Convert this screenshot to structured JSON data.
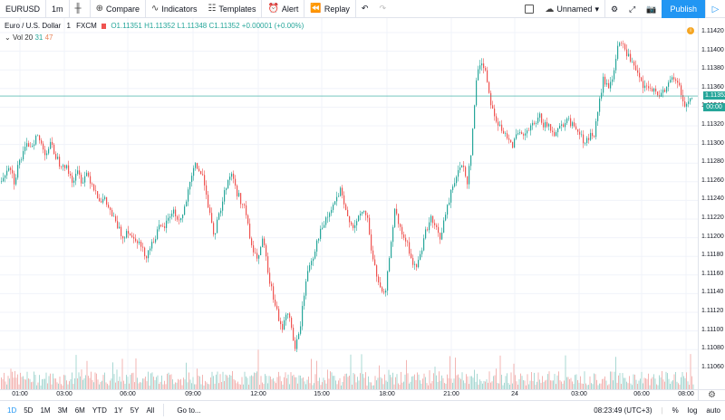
{
  "toolbar": {
    "symbol": "EURUSD",
    "interval": "1m",
    "compare": "Compare",
    "indicators": "Indicators",
    "templates": "Templates",
    "alert": "Alert",
    "replay": "Replay",
    "layout_name": "Unnamed",
    "publish": "Publish"
  },
  "legend": {
    "name": "Euro / U.S. Dollar",
    "interval": "1",
    "exchange": "FXCM",
    "open": "O1.11351",
    "high": "H1.11352",
    "low": "L1.11348",
    "close": "C1.11352",
    "change": "+0.00001 (+0.00%)",
    "vol_label": "Vol",
    "vol_period": "20",
    "vol_value": "31",
    "vol_ma": "47"
  },
  "price_axis": {
    "ticks": [
      "1.11420",
      "1.11400",
      "1.11380",
      "1.11360",
      "1.11340",
      "1.11320",
      "1.11300",
      "1.11280",
      "1.11260",
      "1.11240",
      "1.11220",
      "1.11200",
      "1.11180",
      "1.11160",
      "1.11140",
      "1.11120",
      "1.11100",
      "1.11080",
      "1.11060"
    ],
    "current_price": "1.11352",
    "timer": "00:00"
  },
  "time_axis": {
    "ticks": [
      "01:00",
      "03:00",
      "06:00",
      "09:00",
      "12:00",
      "15:00",
      "18:00",
      "21:00",
      "24",
      "03:00",
      "06:00",
      "08:00"
    ]
  },
  "bottom_bar": {
    "ranges": [
      "1D",
      "5D",
      "1M",
      "3M",
      "6M",
      "YTD",
      "1Y",
      "5Y",
      "All"
    ],
    "goto": "Go to...",
    "clock": "08:23:49 (UTC+3)",
    "percent": "%",
    "log": "log",
    "auto": "auto"
  },
  "chart_data": {
    "type": "candlestick",
    "colors": {
      "up": "#26a69a",
      "down": "#ef5350",
      "up_vol": "#a8d8d3",
      "down_vol": "#f3b5b3",
      "price_line": "#26a69a"
    },
    "ylim": [
      1.1105,
      1.1143
    ],
    "close_path": [
      [
        0,
        1.1126
      ],
      [
        5,
        1.1127
      ],
      [
        10,
        1.1128
      ],
      [
        15,
        1.1126
      ],
      [
        20,
        1.1128
      ],
      [
        25,
        1.1129
      ],
      [
        30,
        1.113
      ],
      [
        35,
        1.113
      ],
      [
        40,
        1.1131
      ],
      [
        45,
        1.113
      ],
      [
        50,
        1.1129
      ],
      [
        55,
        1.113
      ],
      [
        60,
        1.1129
      ],
      [
        65,
        1.1128
      ],
      [
        70,
        1.1128
      ],
      [
        75,
        1.1127
      ],
      [
        80,
        1.1126
      ],
      [
        85,
        1.1127
      ],
      [
        90,
        1.1126
      ],
      [
        95,
        1.1127
      ],
      [
        100,
        1.1126
      ],
      [
        105,
        1.1125
      ],
      [
        110,
        1.1124
      ],
      [
        115,
        1.1124
      ],
      [
        120,
        1.1123
      ],
      [
        125,
        1.1122
      ],
      [
        130,
        1.1121
      ],
      [
        135,
        1.112
      ],
      [
        140,
        1.1121
      ],
      [
        145,
        1.112
      ],
      [
        150,
        1.112
      ],
      [
        155,
        1.1119
      ],
      [
        160,
        1.1118
      ],
      [
        165,
        1.1119
      ],
      [
        170,
        1.112
      ],
      [
        175,
        1.1121
      ],
      [
        180,
        1.1121
      ],
      [
        185,
        1.1122
      ],
      [
        190,
        1.1123
      ],
      [
        195,
        1.1122
      ],
      [
        200,
        1.1122
      ],
      [
        205,
        1.1124
      ],
      [
        210,
        1.1126
      ],
      [
        215,
        1.1128
      ],
      [
        220,
        1.1127
      ],
      [
        225,
        1.1126
      ],
      [
        230,
        1.1123
      ],
      [
        235,
        1.112
      ],
      [
        240,
        1.1122
      ],
      [
        245,
        1.1124
      ],
      [
        250,
        1.1126
      ],
      [
        255,
        1.1127
      ],
      [
        260,
        1.1125
      ],
      [
        265,
        1.1124
      ],
      [
        270,
        1.1123
      ],
      [
        275,
        1.112
      ],
      [
        280,
        1.1118
      ],
      [
        285,
        1.1118
      ],
      [
        290,
        1.112
      ],
      [
        295,
        1.1116
      ],
      [
        300,
        1.1114
      ],
      [
        305,
        1.1112
      ],
      [
        310,
        1.111
      ],
      [
        315,
        1.1112
      ],
      [
        320,
        1.1111
      ],
      [
        325,
        1.1108
      ],
      [
        330,
        1.111
      ],
      [
        335,
        1.1114
      ],
      [
        340,
        1.1117
      ],
      [
        345,
        1.1118
      ],
      [
        350,
        1.112
      ],
      [
        355,
        1.1121
      ],
      [
        360,
        1.1122
      ],
      [
        365,
        1.1123
      ],
      [
        370,
        1.1124
      ],
      [
        375,
        1.1125
      ],
      [
        380,
        1.1123
      ],
      [
        385,
        1.1122
      ],
      [
        390,
        1.1121
      ],
      [
        395,
        1.1122
      ],
      [
        400,
        1.1123
      ],
      [
        405,
        1.1122
      ],
      [
        410,
        1.1118
      ],
      [
        415,
        1.1116
      ],
      [
        420,
        1.1114
      ],
      [
        425,
        1.1114
      ],
      [
        430,
        1.1119
      ],
      [
        435,
        1.1123
      ],
      [
        440,
        1.1121
      ],
      [
        445,
        1.112
      ],
      [
        450,
        1.1119
      ],
      [
        455,
        1.1117
      ],
      [
        460,
        1.1117
      ],
      [
        465,
        1.1119
      ],
      [
        470,
        1.1121
      ],
      [
        475,
        1.1122
      ],
      [
        480,
        1.1121
      ],
      [
        485,
        1.112
      ],
      [
        490,
        1.1122
      ],
      [
        495,
        1.1124
      ],
      [
        500,
        1.1126
      ],
      [
        505,
        1.1127
      ],
      [
        510,
        1.1128
      ],
      [
        515,
        1.1126
      ],
      [
        520,
        1.113
      ],
      [
        525,
        1.1137
      ],
      [
        530,
        1.1139
      ],
      [
        535,
        1.1138
      ],
      [
        540,
        1.1135
      ],
      [
        545,
        1.1133
      ],
      [
        550,
        1.1132
      ],
      [
        555,
        1.1131
      ],
      [
        560,
        1.1131
      ],
      [
        565,
        1.113
      ],
      [
        570,
        1.1131
      ],
      [
        575,
        1.1131
      ],
      [
        580,
        1.1131
      ],
      [
        585,
        1.1132
      ],
      [
        590,
        1.1132
      ],
      [
        595,
        1.1133
      ],
      [
        600,
        1.1132
      ],
      [
        605,
        1.1132
      ],
      [
        610,
        1.1131
      ],
      [
        615,
        1.1132
      ],
      [
        620,
        1.1132
      ],
      [
        625,
        1.1133
      ],
      [
        630,
        1.1132
      ],
      [
        635,
        1.1132
      ],
      [
        640,
        1.1131
      ],
      [
        645,
        1.113
      ],
      [
        650,
        1.1131
      ],
      [
        655,
        1.1131
      ],
      [
        660,
        1.1134
      ],
      [
        665,
        1.1137
      ],
      [
        670,
        1.1136
      ],
      [
        675,
        1.1137
      ],
      [
        680,
        1.114
      ],
      [
        685,
        1.1141
      ],
      [
        690,
        1.114
      ],
      [
        695,
        1.1139
      ],
      [
        700,
        1.1138
      ],
      [
        705,
        1.1137
      ],
      [
        710,
        1.1136
      ],
      [
        715,
        1.1136
      ],
      [
        720,
        1.1136
      ],
      [
        725,
        1.1135
      ],
      [
        730,
        1.1136
      ],
      [
        735,
        1.1136
      ],
      [
        740,
        1.1137
      ],
      [
        745,
        1.1137
      ],
      [
        750,
        1.1136
      ],
      [
        755,
        1.1134
      ],
      [
        760,
        1.1135
      ],
      [
        765,
        1.1135
      ]
    ]
  }
}
